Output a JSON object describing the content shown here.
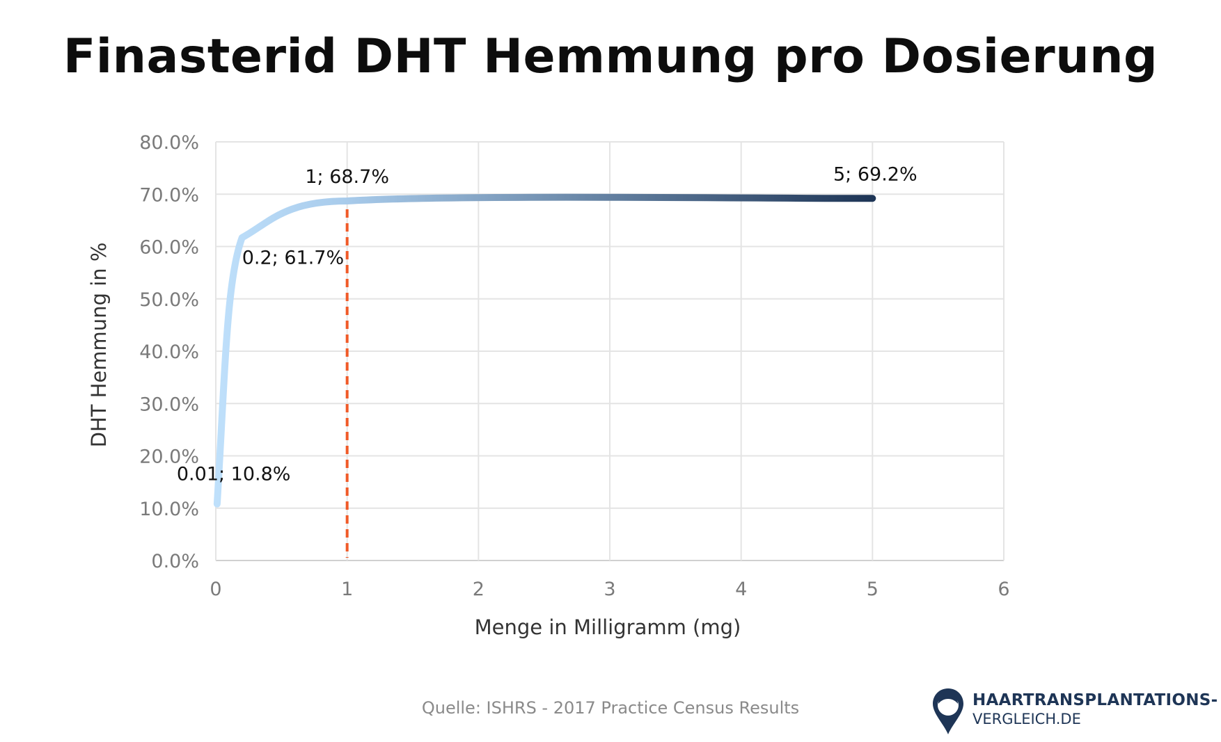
{
  "chart_data": {
    "type": "line",
    "title": "Finasterid DHT Hemmung pro Dosierung",
    "xlabel": "Menge in Milligramm (mg)",
    "ylabel": "DHT Hemmung in %",
    "xlim": [
      0,
      6
    ],
    "ylim": [
      0,
      80
    ],
    "x_ticks": [
      "0",
      "1",
      "2",
      "3",
      "4",
      "5",
      "6"
    ],
    "y_ticks": [
      "0.0%",
      "10.0%",
      "20.0%",
      "30.0%",
      "40.0%",
      "50.0%",
      "60.0%",
      "70.0%",
      "80.0%"
    ],
    "grid": true,
    "series": [
      {
        "x": [
          0.01,
          0.2,
          1,
          5
        ],
        "y": [
          10.8,
          61.7,
          68.7,
          69.2
        ],
        "gradient_colors": [
          "#bfe0fb",
          "#1e3556"
        ]
      }
    ],
    "data_labels": [
      "0.01; 10.8%",
      "0.2; 61.7%",
      "1; 68.7%",
      "5; 69.2%"
    ],
    "reference_line": {
      "x": 1,
      "color": "#f05a28",
      "style": "dashed"
    },
    "source": "Quelle: ISHRS - 2017 Practice Census Results"
  },
  "logo": {
    "line1": "HAARTRANSPLANTATIONS-",
    "line2": "VERGLEICH.DE",
    "icon": "map-pin-head-icon",
    "color": "#1e3556"
  }
}
